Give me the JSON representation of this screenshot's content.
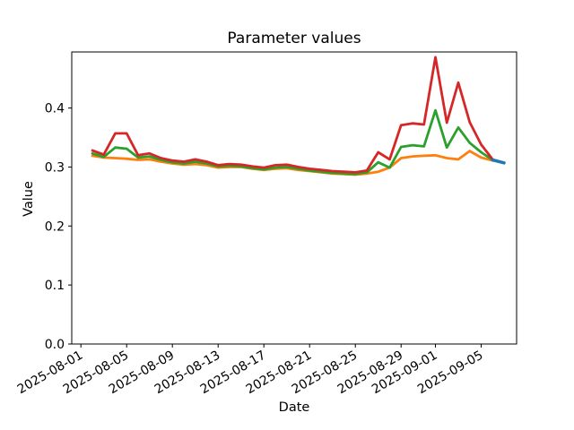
{
  "figure": {
    "background": "#ffffff"
  },
  "chart_data": {
    "type": "line",
    "title": "Parameter values",
    "xlabel": "Date",
    "ylabel": "Value",
    "grid": false,
    "legend": false,
    "x_axis": {
      "unit": "date",
      "origin_date": "2025-08-01",
      "lim_days": [
        -0.8,
        38.1
      ],
      "tick_rotation_deg": 30,
      "ticks": [
        {
          "date": "2025-08-01",
          "label": "2025-08-01"
        },
        {
          "date": "2025-08-05",
          "label": "2025-08-05"
        },
        {
          "date": "2025-08-09",
          "label": "2025-08-09"
        },
        {
          "date": "2025-08-13",
          "label": "2025-08-13"
        },
        {
          "date": "2025-08-17",
          "label": "2025-08-17"
        },
        {
          "date": "2025-08-21",
          "label": "2025-08-21"
        },
        {
          "date": "2025-08-25",
          "label": "2025-08-25"
        },
        {
          "date": "2025-08-29",
          "label": "2025-08-29"
        },
        {
          "date": "2025-09-01",
          "label": "2025-09-01"
        },
        {
          "date": "2025-09-05",
          "label": "2025-09-05"
        }
      ]
    },
    "y_axis": {
      "lim": [
        0.0,
        0.495
      ],
      "ticks": [
        {
          "value": 0.0,
          "label": "0.0"
        },
        {
          "value": 0.1,
          "label": "0.1"
        },
        {
          "value": 0.2,
          "label": "0.2"
        },
        {
          "value": 0.3,
          "label": "0.3"
        },
        {
          "value": 0.4,
          "label": "0.4"
        }
      ]
    },
    "series": [
      {
        "name": "series-orange",
        "color": "#ff7f0e",
        "line_width": 2.8,
        "dates": [
          "2025-08-02",
          "2025-08-03",
          "2025-08-04",
          "2025-08-05",
          "2025-08-06",
          "2025-08-07",
          "2025-08-08",
          "2025-08-09",
          "2025-08-10",
          "2025-08-11",
          "2025-08-12",
          "2025-08-13",
          "2025-08-14",
          "2025-08-15",
          "2025-08-16",
          "2025-08-17",
          "2025-08-18",
          "2025-08-19",
          "2025-08-20",
          "2025-08-21",
          "2025-08-22",
          "2025-08-23",
          "2025-08-24",
          "2025-08-25",
          "2025-08-26",
          "2025-08-27",
          "2025-08-28",
          "2025-08-29",
          "2025-08-30",
          "2025-08-31",
          "2025-09-01",
          "2025-09-02",
          "2025-09-03",
          "2025-09-04",
          "2025-09-05",
          "2025-09-06"
        ],
        "values": [
          0.319,
          0.316,
          0.315,
          0.314,
          0.312,
          0.313,
          0.309,
          0.306,
          0.304,
          0.305,
          0.303,
          0.299,
          0.3,
          0.3,
          0.297,
          0.295,
          0.297,
          0.298,
          0.295,
          0.293,
          0.291,
          0.289,
          0.288,
          0.287,
          0.289,
          0.292,
          0.299,
          0.315,
          0.318,
          0.319,
          0.32,
          0.315,
          0.313,
          0.327,
          0.316,
          0.311
        ]
      },
      {
        "name": "series-green",
        "color": "#2ca02c",
        "line_width": 2.8,
        "dates": [
          "2025-08-02",
          "2025-08-03",
          "2025-08-04",
          "2025-08-05",
          "2025-08-06",
          "2025-08-07",
          "2025-08-08",
          "2025-08-09",
          "2025-08-10",
          "2025-08-11",
          "2025-08-12",
          "2025-08-13",
          "2025-08-14",
          "2025-08-15",
          "2025-08-16",
          "2025-08-17",
          "2025-08-18",
          "2025-08-19",
          "2025-08-20",
          "2025-08-21",
          "2025-08-22",
          "2025-08-23",
          "2025-08-24",
          "2025-08-25",
          "2025-08-26",
          "2025-08-27",
          "2025-08-28",
          "2025-08-29",
          "2025-08-30",
          "2025-08-31",
          "2025-09-01",
          "2025-09-02",
          "2025-09-03",
          "2025-09-04",
          "2025-09-05",
          "2025-09-06"
        ],
        "values": [
          0.323,
          0.317,
          0.333,
          0.331,
          0.316,
          0.318,
          0.312,
          0.308,
          0.306,
          0.309,
          0.306,
          0.301,
          0.302,
          0.301,
          0.298,
          0.296,
          0.299,
          0.3,
          0.297,
          0.294,
          0.292,
          0.29,
          0.289,
          0.288,
          0.291,
          0.308,
          0.299,
          0.334,
          0.337,
          0.335,
          0.396,
          0.333,
          0.367,
          0.341,
          0.325,
          0.312
        ]
      },
      {
        "name": "series-red",
        "color": "#d62728",
        "line_width": 2.8,
        "dates": [
          "2025-08-02",
          "2025-08-03",
          "2025-08-04",
          "2025-08-05",
          "2025-08-06",
          "2025-08-07",
          "2025-08-08",
          "2025-08-09",
          "2025-08-10",
          "2025-08-11",
          "2025-08-12",
          "2025-08-13",
          "2025-08-14",
          "2025-08-15",
          "2025-08-16",
          "2025-08-17",
          "2025-08-18",
          "2025-08-19",
          "2025-08-20",
          "2025-08-21",
          "2025-08-22",
          "2025-08-23",
          "2025-08-24",
          "2025-08-25",
          "2025-08-26",
          "2025-08-27",
          "2025-08-28",
          "2025-08-29",
          "2025-08-30",
          "2025-08-31",
          "2025-09-01",
          "2025-09-02",
          "2025-09-03",
          "2025-09-04",
          "2025-09-05",
          "2025-09-06"
        ],
        "values": [
          0.328,
          0.321,
          0.357,
          0.357,
          0.32,
          0.323,
          0.315,
          0.311,
          0.309,
          0.313,
          0.309,
          0.303,
          0.305,
          0.304,
          0.301,
          0.299,
          0.303,
          0.304,
          0.3,
          0.297,
          0.295,
          0.293,
          0.292,
          0.291,
          0.294,
          0.325,
          0.313,
          0.371,
          0.374,
          0.372,
          0.486,
          0.375,
          0.443,
          0.376,
          0.338,
          0.313
        ]
      },
      {
        "name": "series-blue-end",
        "color": "#1f77b4",
        "line_width": 3.5,
        "dates": [
          "2025-09-06",
          "2025-09-07"
        ],
        "values": [
          0.312,
          0.307
        ]
      }
    ]
  }
}
